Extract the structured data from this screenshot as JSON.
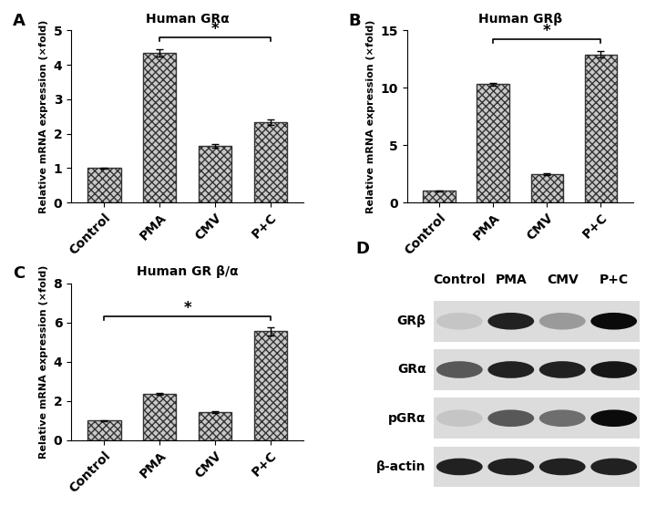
{
  "chart_data": [
    {
      "type": "bar",
      "label": "A",
      "title": "Human GRα",
      "y_label": "Relative mRNA expression (×fold)",
      "categories": [
        "Control",
        "PMA",
        "CMV",
        "P+C"
      ],
      "values": [
        1.0,
        4.35,
        1.65,
        2.33
      ],
      "errors": [
        0.02,
        0.1,
        0.05,
        0.07
      ],
      "color": "#c8c8c8",
      "ylim": [
        0,
        5
      ],
      "yticks": [
        0,
        1,
        2,
        3,
        4,
        5
      ],
      "annotations": [
        {
          "text": "*",
          "between": [
            "PMA",
            "P+C"
          ]
        }
      ]
    },
    {
      "type": "bar",
      "label": "B",
      "title": "Human GRβ",
      "y_label": "Relative mRNA expression (×fold)",
      "categories": [
        "Control",
        "PMA",
        "CMV",
        "P+C"
      ],
      "values": [
        1.0,
        10.3,
        2.45,
        12.9
      ],
      "errors": [
        0.05,
        0.15,
        0.1,
        0.3
      ],
      "color": "#c8c8c8",
      "ylim": [
        0,
        15
      ],
      "yticks": [
        0,
        5,
        10,
        15
      ],
      "annotations": [
        {
          "text": "*",
          "between": [
            "PMA",
            "P+C"
          ]
        }
      ]
    },
    {
      "type": "bar",
      "label": "C",
      "title": "Human GR β/α",
      "y_label": "Relative mRNA expression (×fold)",
      "categories": [
        "Control",
        "PMA",
        "CMV",
        "P+C"
      ],
      "values": [
        1.0,
        2.35,
        1.45,
        5.55
      ],
      "errors": [
        0.03,
        0.05,
        0.05,
        0.2
      ],
      "color": "#c8c8c8",
      "ylim": [
        0,
        8
      ],
      "yticks": [
        0,
        2,
        4,
        6,
        8
      ],
      "annotations": [
        {
          "text": "*",
          "between": [
            "Control",
            "P+C"
          ]
        }
      ]
    },
    {
      "type": "blot",
      "label": "D",
      "columns": [
        "Control",
        "PMA",
        "CMV",
        "P+C"
      ],
      "rows": [
        {
          "name": "GRβ",
          "intensities": [
            0.1,
            0.85,
            0.3,
            0.95
          ]
        },
        {
          "name": "GRα",
          "intensities": [
            0.6,
            0.85,
            0.85,
            0.9
          ]
        },
        {
          "name": "pGRα",
          "intensities": [
            0.1,
            0.6,
            0.5,
            0.95
          ]
        },
        {
          "name": "β-actin",
          "intensities": [
            0.85,
            0.85,
            0.85,
            0.85
          ]
        }
      ]
    }
  ]
}
